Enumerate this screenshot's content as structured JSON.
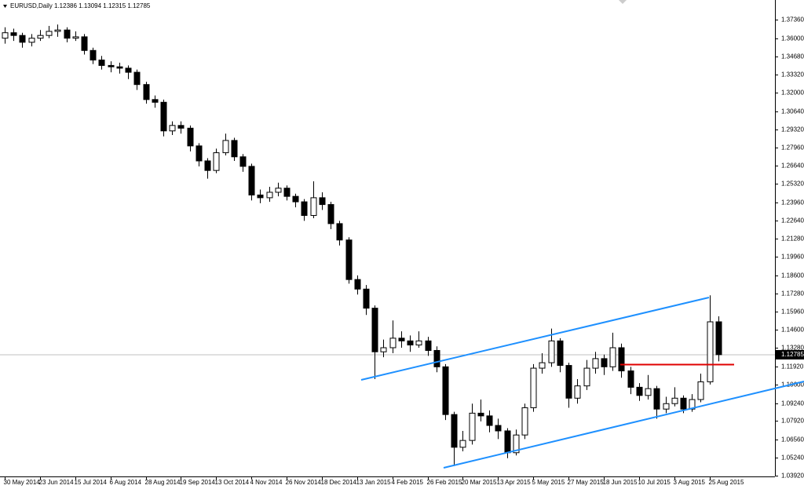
{
  "chart_data": {
    "type": "candlestick",
    "title": "EURUSD,Daily  1.12386 1.13094 1.12315 1.12785",
    "categories": [
      "30 May 2014",
      null,
      null,
      null,
      "23 Jun 2014",
      null,
      null,
      null,
      "15 Jul 2014",
      null,
      null,
      null,
      "6 Aug 2014",
      null,
      null,
      null,
      "28 Aug 2014",
      null,
      null,
      null,
      "19 Sep 2014",
      null,
      null,
      null,
      "13 Oct 2014",
      null,
      null,
      null,
      "4 Nov 2014",
      null,
      null,
      null,
      "26 Nov 2014",
      null,
      null,
      null,
      "18 Dec 2014",
      null,
      null,
      null,
      "13 Jan 2015",
      null,
      null,
      null,
      "4 Feb 2015",
      null,
      null,
      null,
      "26 Feb 2015",
      null,
      null,
      null,
      "20 Mar 2015",
      null,
      null,
      null,
      "13 Apr 2015",
      null,
      null,
      null,
      "5 May 2015",
      null,
      null,
      null,
      "27 May 2015",
      null,
      null,
      null,
      "18 Jun 2015",
      null,
      null,
      null,
      "10 Jul 2015",
      null,
      null,
      null,
      "3 Aug 2015",
      null,
      null,
      null,
      "25 Aug 2015",
      null
    ],
    "open": [
      1.36,
      1.364,
      1.362,
      1.357,
      1.36,
      1.362,
      1.365,
      1.366,
      1.36,
      1.361,
      1.351,
      1.344,
      1.34,
      1.339,
      1.338,
      1.335,
      1.326,
      1.315,
      1.313,
      1.292,
      1.296,
      1.294,
      1.281,
      1.27,
      1.263,
      1.276,
      1.285,
      1.273,
      1.266,
      1.245,
      1.243,
      1.247,
      1.25,
      1.244,
      1.24,
      1.23,
      1.243,
      1.238,
      1.224,
      1.212,
      1.183,
      1.176,
      1.162,
      1.13,
      1.133,
      1.14,
      1.138,
      1.135,
      1.138,
      1.131,
      1.119,
      1.084,
      1.06,
      1.065,
      1.085,
      1.083,
      1.076,
      1.072,
      1.056,
      1.069,
      1.089,
      1.118,
      1.122,
      1.138,
      1.12,
      1.096,
      1.105,
      1.118,
      1.125,
      1.119,
      1.133,
      1.116,
      1.104,
      1.098,
      1.103,
      1.088,
      1.092,
      1.096,
      1.088,
      1.095,
      1.108,
      1.152
    ],
    "high": [
      1.368,
      1.367,
      1.364,
      1.363,
      1.366,
      1.369,
      1.37,
      1.368,
      1.365,
      1.363,
      1.353,
      1.347,
      1.343,
      1.342,
      1.34,
      1.337,
      1.328,
      1.318,
      1.315,
      1.299,
      1.299,
      1.296,
      1.283,
      1.272,
      1.279,
      1.29,
      1.287,
      1.275,
      1.268,
      1.249,
      1.251,
      1.254,
      1.252,
      1.246,
      1.242,
      1.255,
      1.247,
      1.24,
      1.226,
      1.214,
      1.186,
      1.179,
      1.164,
      1.139,
      1.153,
      1.145,
      1.142,
      1.145,
      1.141,
      1.134,
      1.121,
      1.086,
      1.072,
      1.092,
      1.095,
      1.087,
      1.081,
      1.074,
      1.073,
      1.092,
      1.121,
      1.129,
      1.147,
      1.14,
      1.122,
      1.11,
      1.124,
      1.13,
      1.128,
      1.144,
      1.136,
      1.119,
      1.107,
      1.113,
      1.105,
      1.097,
      1.104,
      1.098,
      1.099,
      1.114,
      1.1714,
      1.156
    ],
    "low": [
      1.356,
      1.358,
      1.353,
      1.354,
      1.358,
      1.36,
      1.361,
      1.357,
      1.358,
      1.348,
      1.341,
      1.337,
      1.335,
      1.334,
      1.33,
      1.322,
      1.312,
      1.309,
      1.288,
      1.289,
      1.29,
      1.277,
      1.266,
      1.257,
      1.261,
      1.274,
      1.27,
      1.262,
      1.241,
      1.239,
      1.24,
      1.244,
      1.241,
      1.236,
      1.226,
      1.228,
      1.234,
      1.22,
      1.208,
      1.18,
      1.172,
      1.157,
      1.11,
      1.126,
      1.129,
      1.133,
      1.13,
      1.133,
      1.127,
      1.115,
      1.08,
      1.0462,
      1.057,
      1.062,
      1.079,
      1.071,
      1.066,
      1.052,
      1.054,
      1.066,
      1.086,
      1.114,
      1.119,
      1.115,
      1.089,
      1.092,
      1.102,
      1.114,
      1.113,
      1.116,
      1.111,
      1.099,
      1.094,
      1.095,
      1.081,
      1.085,
      1.09,
      1.085,
      1.086,
      1.093,
      1.106,
      1.123
    ],
    "close": [
      1.364,
      1.362,
      1.357,
      1.36,
      1.362,
      1.365,
      1.366,
      1.36,
      1.361,
      1.351,
      1.344,
      1.34,
      1.339,
      1.338,
      1.335,
      1.326,
      1.315,
      1.313,
      1.292,
      1.296,
      1.294,
      1.281,
      1.27,
      1.263,
      1.276,
      1.285,
      1.273,
      1.266,
      1.245,
      1.243,
      1.247,
      1.25,
      1.244,
      1.24,
      1.23,
      1.243,
      1.238,
      1.224,
      1.212,
      1.183,
      1.176,
      1.162,
      1.13,
      1.133,
      1.14,
      1.138,
      1.135,
      1.138,
      1.131,
      1.119,
      1.084,
      1.06,
      1.065,
      1.085,
      1.083,
      1.076,
      1.072,
      1.056,
      1.069,
      1.089,
      1.118,
      1.122,
      1.138,
      1.12,
      1.096,
      1.105,
      1.118,
      1.125,
      1.119,
      1.133,
      1.116,
      1.104,
      1.098,
      1.103,
      1.088,
      1.092,
      1.096,
      1.088,
      1.095,
      1.108,
      1.152,
      1.1279
    ],
    "ylim": [
      1.0386,
      1.388
    ],
    "yticks": [
      {
        "value": 1.3736,
        "label": "1.37360"
      },
      {
        "value": 1.36,
        "label": "1.36000"
      },
      {
        "value": 1.3468,
        "label": "1.34680"
      },
      {
        "value": 1.3332,
        "label": "1.33320"
      },
      {
        "value": 1.32,
        "label": "1.32000"
      },
      {
        "value": 1.3064,
        "label": "1.30640"
      },
      {
        "value": 1.2932,
        "label": "1.29320"
      },
      {
        "value": 1.2796,
        "label": "1.27960"
      },
      {
        "value": 1.2664,
        "label": "1.26640"
      },
      {
        "value": 1.2532,
        "label": "1.25320"
      },
      {
        "value": 1.2396,
        "label": "1.23960"
      },
      {
        "value": 1.2264,
        "label": "1.22640"
      },
      {
        "value": 1.2128,
        "label": "1.21280"
      },
      {
        "value": 1.1996,
        "label": "1.19960"
      },
      {
        "value": 1.186,
        "label": "1.18600"
      },
      {
        "value": 1.1728,
        "label": "1.17280"
      },
      {
        "value": 1.1596,
        "label": "1.15960"
      },
      {
        "value": 1.146,
        "label": "1.14600"
      },
      {
        "value": 1.1328,
        "label": "1.13280"
      },
      {
        "value": 1.1192,
        "label": "1.11920"
      },
      {
        "value": 1.106,
        "label": "1.10600"
      },
      {
        "value": 1.0924,
        "label": "1.09240"
      },
      {
        "value": 1.0792,
        "label": "1.07920"
      },
      {
        "value": 1.0656,
        "label": "1.06560"
      },
      {
        "value": 1.0524,
        "label": "1.05240"
      },
      {
        "value": 1.0392,
        "label": "1.03920"
      }
    ],
    "current_price": {
      "value": 1.12785,
      "label": "1.12785"
    }
  }
}
